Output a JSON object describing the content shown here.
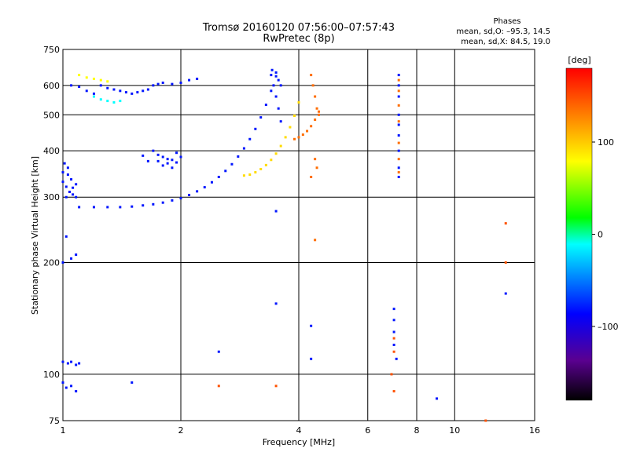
{
  "header": {
    "title": "Tromsø 20160120 07:56:00–07:57:43",
    "subtitle": "RwPretec (8p)"
  },
  "stats": {
    "heading": "Phases",
    "line1": "mean, sd,O: –95.3, 14.5",
    "line2": "mean, sd,X:  84.5, 19.0"
  },
  "colorbar": {
    "label": "[deg]",
    "min": -180,
    "max": 180,
    "ticks": [
      {
        "value": 100,
        "label": "100"
      },
      {
        "value": 0,
        "label": "0"
      },
      {
        "value": -100,
        "label": "–100"
      }
    ]
  },
  "chart_data": {
    "type": "scatter",
    "xlabel": "Frequency [MHz]",
    "ylabel": "Stationary phase Virtual Height [km]",
    "xscale": "log",
    "yscale": "log",
    "xlim": [
      1,
      16
    ],
    "ylim": [
      75,
      750
    ],
    "xticks": [
      {
        "value": 1,
        "label": "1"
      },
      {
        "value": 2,
        "label": "2"
      },
      {
        "value": 4,
        "label": "4"
      },
      {
        "value": 6,
        "label": "6"
      },
      {
        "value": 8,
        "label": "8"
      },
      {
        "value": 10,
        "label": "10"
      },
      {
        "value": 16,
        "label": "16"
      }
    ],
    "xgrid": [
      2,
      4,
      6,
      8,
      10
    ],
    "yticks": [
      {
        "value": 75,
        "label": "75"
      },
      {
        "value": 100,
        "label": "100"
      },
      {
        "value": 200,
        "label": "200"
      },
      {
        "value": 300,
        "label": "300"
      },
      {
        "value": 400,
        "label": "400"
      },
      {
        "value": 500,
        "label": "500"
      },
      {
        "value": 600,
        "label": "600"
      },
      {
        "value": 750,
        "label": "750"
      }
    ],
    "ygrid": [
      100,
      200,
      300,
      400,
      500,
      600
    ],
    "grid": true,
    "color_encodes": "phase [deg]",
    "series": [
      {
        "color_phase": -95,
        "points": [
          [
            1.1,
            282
          ],
          [
            1.2,
            282
          ],
          [
            1.3,
            282
          ],
          [
            1.4,
            282
          ],
          [
            1.5,
            283
          ],
          [
            1.6,
            285
          ],
          [
            1.7,
            287
          ],
          [
            1.8,
            290
          ],
          [
            1.9,
            294
          ],
          [
            2.0,
            298
          ],
          [
            2.1,
            304
          ],
          [
            2.2,
            311
          ],
          [
            2.3,
            319
          ],
          [
            2.4,
            329
          ],
          [
            2.5,
            340
          ],
          [
            2.6,
            353
          ],
          [
            2.7,
            368
          ],
          [
            2.8,
            386
          ],
          [
            2.9,
            406
          ],
          [
            3.0,
            430
          ],
          [
            3.1,
            458
          ],
          [
            3.2,
            492
          ],
          [
            3.3,
            532
          ],
          [
            3.4,
            580
          ],
          [
            3.5,
            635
          ]
        ]
      },
      {
        "color_phase": 95,
        "points": [
          [
            2.9,
            343
          ],
          [
            3.0,
            345
          ],
          [
            3.1,
            350
          ],
          [
            3.2,
            357
          ],
          [
            3.3,
            366
          ],
          [
            3.4,
            378
          ],
          [
            3.5,
            393
          ],
          [
            3.6,
            412
          ],
          [
            3.7,
            435
          ],
          [
            3.8,
            463
          ],
          [
            3.9,
            497
          ],
          [
            4.0,
            540
          ]
        ]
      },
      {
        "color_phase": 140,
        "points": [
          [
            3.9,
            430
          ],
          [
            4.0,
            435
          ],
          [
            4.1,
            442
          ],
          [
            4.2,
            452
          ],
          [
            4.3,
            466
          ],
          [
            4.4,
            485
          ],
          [
            4.5,
            510
          ]
        ]
      },
      {
        "color_phase": -95,
        "points": [
          [
            1.0,
            330
          ],
          [
            1.02,
            320
          ],
          [
            1.04,
            310
          ],
          [
            1.06,
            305
          ],
          [
            1.08,
            300
          ],
          [
            1.0,
            350
          ],
          [
            1.03,
            345
          ],
          [
            1.05,
            335
          ],
          [
            1.08,
            325
          ],
          [
            1.01,
            370
          ],
          [
            1.03,
            360
          ],
          [
            1.02,
            300
          ],
          [
            1.06,
            318
          ]
        ]
      },
      {
        "color_phase": -95,
        "points": [
          [
            1.7,
            400
          ],
          [
            1.75,
            390
          ],
          [
            1.8,
            385
          ],
          [
            1.85,
            380
          ],
          [
            1.9,
            378
          ],
          [
            1.95,
            372
          ],
          [
            1.8,
            365
          ],
          [
            1.85,
            370
          ],
          [
            1.9,
            360
          ],
          [
            1.95,
            395
          ],
          [
            2.0,
            385
          ],
          [
            1.75,
            375
          ],
          [
            1.6,
            388
          ],
          [
            1.65,
            375
          ]
        ]
      },
      {
        "color_phase": -95,
        "points": [
          [
            1.05,
            600
          ],
          [
            1.1,
            595
          ],
          [
            1.15,
            580
          ],
          [
            1.2,
            570
          ],
          [
            1.25,
            600
          ],
          [
            1.3,
            590
          ],
          [
            1.35,
            585
          ],
          [
            1.4,
            580
          ],
          [
            1.45,
            575
          ],
          [
            1.5,
            570
          ],
          [
            1.55,
            575
          ],
          [
            1.6,
            580
          ],
          [
            1.65,
            585
          ],
          [
            1.7,
            600
          ],
          [
            1.75,
            605
          ],
          [
            1.8,
            610
          ],
          [
            1.9,
            605
          ],
          [
            2.0,
            610
          ],
          [
            2.1,
            620
          ],
          [
            2.2,
            625
          ]
        ]
      },
      {
        "color_phase": 80,
        "points": [
          [
            1.1,
            640
          ],
          [
            1.15,
            630
          ],
          [
            1.2,
            625
          ],
          [
            1.25,
            620
          ],
          [
            1.3,
            615
          ]
        ]
      },
      {
        "color_phase": -10,
        "points": [
          [
            1.2,
            560
          ],
          [
            1.25,
            550
          ],
          [
            1.3,
            545
          ],
          [
            1.35,
            540
          ],
          [
            1.4,
            545
          ]
        ]
      },
      {
        "color_phase": -95,
        "points": [
          [
            3.4,
            640
          ],
          [
            3.45,
            600
          ],
          [
            3.5,
            560
          ],
          [
            3.55,
            520
          ],
          [
            3.6,
            480
          ],
          [
            3.42,
            660
          ],
          [
            3.5,
            650
          ],
          [
            3.55,
            620
          ],
          [
            3.6,
            600
          ]
        ]
      },
      {
        "color_phase": 140,
        "points": [
          [
            4.3,
            640
          ],
          [
            4.35,
            600
          ],
          [
            4.4,
            560
          ],
          [
            4.45,
            520
          ],
          [
            4.5,
            500
          ],
          [
            4.4,
            380
          ],
          [
            4.45,
            360
          ],
          [
            4.3,
            340
          ],
          [
            4.4,
            230
          ]
        ]
      },
      {
        "color_phase": -95,
        "points": [
          [
            7.2,
            640
          ],
          [
            7.2,
            600
          ],
          [
            7.2,
            560
          ],
          [
            7.2,
            500
          ],
          [
            7.2,
            470
          ],
          [
            7.2,
            440
          ],
          [
            7.2,
            400
          ],
          [
            7.2,
            360
          ],
          [
            7.2,
            340
          ]
        ]
      },
      {
        "color_phase": 140,
        "points": [
          [
            7.2,
            620
          ],
          [
            7.2,
            580
          ],
          [
            7.2,
            530
          ],
          [
            7.2,
            480
          ],
          [
            7.2,
            420
          ],
          [
            7.2,
            380
          ],
          [
            7.2,
            350
          ]
        ]
      },
      {
        "color_phase": -95,
        "points": [
          [
            1.0,
            108
          ],
          [
            1.03,
            107
          ],
          [
            1.05,
            108
          ],
          [
            1.08,
            106
          ],
          [
            1.1,
            107
          ],
          [
            1.0,
            95
          ],
          [
            1.02,
            92
          ],
          [
            1.05,
            93
          ],
          [
            1.08,
            90
          ],
          [
            1.0,
            200
          ],
          [
            1.05,
            205
          ],
          [
            1.08,
            210
          ],
          [
            1.5,
            95
          ],
          [
            1.02,
            235
          ]
        ]
      },
      {
        "color_phase": -95,
        "points": [
          [
            7.0,
            150
          ],
          [
            7.0,
            140
          ],
          [
            7.0,
            130
          ],
          [
            7.0,
            120
          ],
          [
            7.1,
            110
          ],
          [
            9.0,
            86
          ],
          [
            13.5,
            165
          ],
          [
            4.3,
            135
          ],
          [
            4.3,
            110
          ],
          [
            3.5,
            155
          ],
          [
            3.5,
            275
          ],
          [
            2.5,
            115
          ]
        ]
      },
      {
        "color_phase": 150,
        "points": [
          [
            7.0,
            125
          ],
          [
            7.0,
            115
          ],
          [
            6.9,
            100
          ],
          [
            7.0,
            90
          ],
          [
            3.5,
            93
          ],
          [
            2.5,
            93
          ],
          [
            12.0,
            75
          ],
          [
            13.5,
            200
          ],
          [
            13.5,
            255
          ]
        ]
      }
    ]
  }
}
